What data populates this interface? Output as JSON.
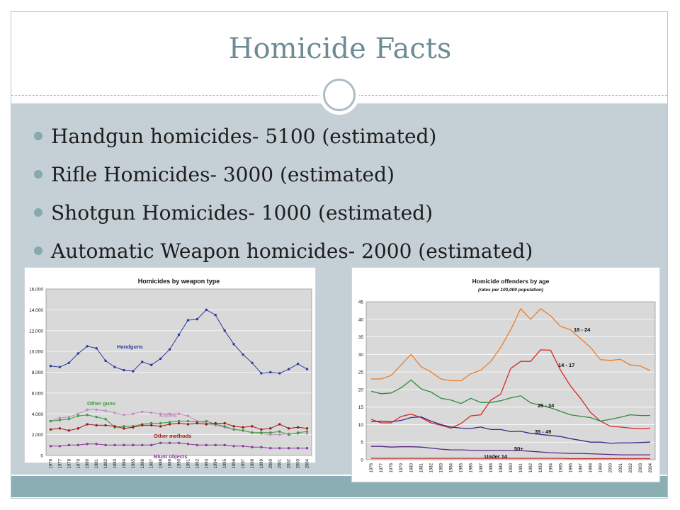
{
  "slide": {
    "title": "Homicide Facts",
    "bullets": [
      "Handgun homicides- 5100 (estimated)",
      "Rifle Homicides- 3000 (estimated)",
      "Shotgun Homicides- 1000 (estimated)",
      "Automatic Weapon homicides- 2000 (estimated)"
    ],
    "colors": {
      "title": "#6d8b94",
      "body_bg": "#c5d0d6",
      "accent": "#86a9ad",
      "strip": "#8aaeb3"
    }
  },
  "chart_data": [
    {
      "type": "line",
      "title": "Homicides by weapon type",
      "ylim": [
        0,
        16000
      ],
      "yticks": [
        "0",
        "2,000",
        "4,000",
        "6,000",
        "8,000",
        "10,000",
        "12,000",
        "14,000",
        "16,000"
      ],
      "x": [
        "1976",
        "1977",
        "1978",
        "1979",
        "1980",
        "1981",
        "1982",
        "1983",
        "1984",
        "1985",
        "1986",
        "1987",
        "1988",
        "1989",
        "1990",
        "1991",
        "1992",
        "1993",
        "1994",
        "1995",
        "1996",
        "1997",
        "1998",
        "1999",
        "2000",
        "2001",
        "2002",
        "2003",
        "2004"
      ],
      "grid": true,
      "series": [
        {
          "name": "Handguns",
          "color": "#2f3aa0",
          "values": [
            8600,
            8500,
            8900,
            9800,
            10500,
            10300,
            9100,
            8500,
            8200,
            8100,
            9000,
            8700,
            9300,
            10200,
            11600,
            13000,
            13100,
            14000,
            13500,
            12000,
            10700,
            9700,
            8900,
            7900,
            8000,
            7900,
            8300,
            8800,
            8300
          ]
        },
        {
          "name": "Knives",
          "color": "#c48ac0",
          "values": [
            3300,
            3600,
            3700,
            4000,
            4400,
            4400,
            4300,
            4100,
            3900,
            4000,
            4200,
            4100,
            4000,
            4000,
            4000,
            3800,
            3300,
            3100,
            2900,
            2700,
            2500,
            2400,
            2200,
            2100,
            2000,
            2000,
            2100,
            2100,
            2100
          ]
        },
        {
          "name": "Other guns",
          "color": "#3b9a3b",
          "values": [
            3300,
            3400,
            3500,
            3800,
            3900,
            3700,
            3500,
            2700,
            2800,
            2800,
            3000,
            3100,
            3100,
            3200,
            3300,
            3300,
            3200,
            3300,
            3000,
            2800,
            2500,
            2400,
            2200,
            2200,
            2200,
            2300,
            2000,
            2200,
            2300
          ]
        },
        {
          "name": "Other methods",
          "color": "#a01818",
          "values": [
            2500,
            2600,
            2400,
            2600,
            3000,
            2900,
            2900,
            2800,
            2600,
            2700,
            2900,
            2900,
            2800,
            3000,
            3100,
            3000,
            3100,
            3000,
            3100,
            3100,
            2800,
            2700,
            2800,
            2500,
            2600,
            3000,
            2600,
            2700,
            2600
          ]
        },
        {
          "name": "Blunt objects",
          "color": "#8b3aa0",
          "values": [
            900,
            900,
            1000,
            1000,
            1100,
            1100,
            1000,
            1000,
            1000,
            1000,
            1000,
            1000,
            1200,
            1200,
            1200,
            1100,
            1000,
            1000,
            1000,
            1000,
            900,
            900,
            800,
            800,
            700,
            700,
            700,
            700,
            700
          ]
        }
      ]
    },
    {
      "type": "line",
      "title": "Homicide offenders by age",
      "subtitle": "(rates per 100,000 population)",
      "ylim": [
        0,
        45
      ],
      "yticks": [
        "0",
        "5",
        "10",
        "15",
        "20",
        "25",
        "30",
        "35",
        "40",
        "45"
      ],
      "x": [
        "1976",
        "1977",
        "1978",
        "1979",
        "1980",
        "1981",
        "1982",
        "1983",
        "1984",
        "1985",
        "1986",
        "1987",
        "1988",
        "1989",
        "1990",
        "1991",
        "1992",
        "1993",
        "1994",
        "1995",
        "1996",
        "1997",
        "1998",
        "1999",
        "2000",
        "2001",
        "2002",
        "2003",
        "2004"
      ],
      "grid": true,
      "series": [
        {
          "name": "18 - 24",
          "color": "#ef7b21",
          "values": [
            23,
            23,
            24,
            27,
            30,
            26.5,
            25,
            23,
            22.5,
            22.5,
            24.5,
            25.5,
            28,
            32,
            37,
            43,
            40,
            43,
            41,
            38,
            37,
            34.5,
            32,
            28.5,
            28.3,
            28.6,
            27,
            26.7,
            25.4
          ]
        },
        {
          "name": "14 - 17",
          "color": "#d62828",
          "values": [
            11.5,
            10.5,
            10.5,
            12.3,
            13,
            12,
            10.5,
            9.8,
            9,
            10.3,
            12.5,
            12.8,
            17,
            18.7,
            26,
            28,
            28,
            31.3,
            31.2,
            25.5,
            21,
            17.5,
            13.5,
            11,
            9.5,
            9.3,
            9,
            8.8,
            9
          ]
        },
        {
          "name": "25 - 34",
          "color": "#2e8b3e",
          "values": [
            19.5,
            18.8,
            19,
            20.5,
            22.7,
            20.2,
            19.3,
            17.5,
            17,
            16,
            17.5,
            16.3,
            16.3,
            16.8,
            17.6,
            18.2,
            16.2,
            15.5,
            14.8,
            13.8,
            12.8,
            12.4,
            12,
            11,
            11.5,
            12.1,
            12.8,
            12.6,
            12.6
          ]
        },
        {
          "name": "35 - 49",
          "color": "#3a2a8c",
          "values": [
            10.8,
            11,
            10.8,
            11.2,
            12,
            12.2,
            11,
            10,
            9.3,
            9,
            8.9,
            9.3,
            8.6,
            8.6,
            8,
            8.1,
            7.5,
            7.2,
            6.9,
            6.6,
            6,
            5.5,
            5,
            5,
            4.7,
            4.8,
            4.8,
            4.9,
            5
          ]
        },
        {
          "name": "50+",
          "color": "#5a2585",
          "values": [
            3.8,
            3.8,
            3.6,
            3.7,
            3.7,
            3.6,
            3.3,
            3,
            2.8,
            2.8,
            2.7,
            2.6,
            2.6,
            2.6,
            2.6,
            2.6,
            2.4,
            2.2,
            2,
            1.9,
            1.8,
            1.8,
            1.7,
            1.6,
            1.5,
            1.4,
            1.4,
            1.4,
            1.4
          ]
        },
        {
          "name": "Under 14",
          "color": "#c02828",
          "values": [
            0.4,
            0.4,
            0.4,
            0.4,
            0.4,
            0.4,
            0.4,
            0.4,
            0.4,
            0.4,
            0.4,
            0.4,
            0.4,
            0.4,
            0.4,
            0.4,
            0.4,
            0.4,
            0.4,
            0.4,
            0.3,
            0.3,
            0.3,
            0.3,
            0.3,
            0.3,
            0.3,
            0.3,
            0.3
          ]
        }
      ]
    }
  ]
}
